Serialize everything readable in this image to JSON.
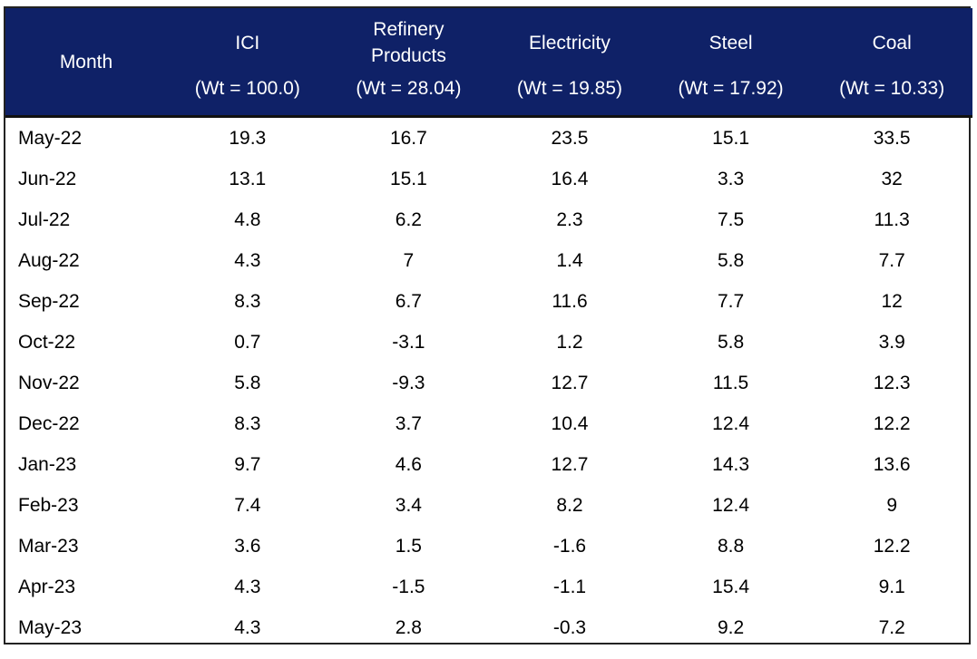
{
  "table": {
    "headers": [
      {
        "name": "Month",
        "weight": ""
      },
      {
        "name": "ICI",
        "weight": "(Wt = 100.0)"
      },
      {
        "name": "Refinery Products",
        "line1": "Refinery",
        "line2": "Products",
        "weight": "(Wt = 28.04)"
      },
      {
        "name": "Electricity",
        "weight": "(Wt = 19.85)"
      },
      {
        "name": "Steel",
        "weight": "(Wt = 17.92)"
      },
      {
        "name": "Coal",
        "weight": "(Wt = 10.33)"
      }
    ],
    "rows": [
      [
        "May-22",
        "19.3",
        "16.7",
        "23.5",
        "15.1",
        "33.5"
      ],
      [
        "Jun-22",
        "13.1",
        "15.1",
        "16.4",
        "3.3",
        "32"
      ],
      [
        "Jul-22",
        "4.8",
        "6.2",
        "2.3",
        "7.5",
        "11.3"
      ],
      [
        "Aug-22",
        "4.3",
        "7",
        "1.4",
        "5.8",
        "7.7"
      ],
      [
        "Sep-22",
        "8.3",
        "6.7",
        "11.6",
        "7.7",
        "12"
      ],
      [
        "Oct-22",
        "0.7",
        "-3.1",
        "1.2",
        "5.8",
        "3.9"
      ],
      [
        "Nov-22",
        "5.8",
        "-9.3",
        "12.7",
        "11.5",
        "12.3"
      ],
      [
        "Dec-22",
        "8.3",
        "3.7",
        "10.4",
        "12.4",
        "12.2"
      ],
      [
        "Jan-23",
        "9.7",
        "4.6",
        "12.7",
        "14.3",
        "13.6"
      ],
      [
        "Feb-23",
        "7.4",
        "3.4",
        "8.2",
        "12.4",
        "9"
      ],
      [
        "Mar-23",
        "3.6",
        "1.5",
        "-1.6",
        "8.8",
        "12.2"
      ],
      [
        "Apr-23",
        "4.3",
        "-1.5",
        "-1.1",
        "15.4",
        "9.1"
      ],
      [
        "May-23",
        "4.3",
        "2.8",
        "-0.3",
        "9.2",
        "7.2"
      ]
    ]
  },
  "colors": {
    "header_background": "#0f2167",
    "header_text": "#ffffff"
  }
}
